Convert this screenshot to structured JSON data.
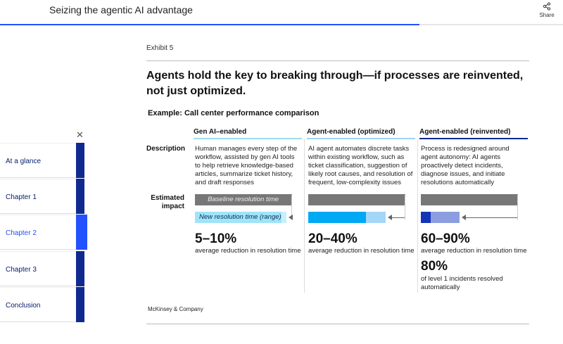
{
  "header": {
    "title": "Seizing the agentic AI advantage",
    "share_label": "Share",
    "share_icon": "share-icon",
    "reading_progress_percent": 74.5
  },
  "sidebar": {
    "close_icon": "close-icon",
    "active": "Chapter 2",
    "items": [
      {
        "label": "At a glance"
      },
      {
        "label": "Chapter 1"
      },
      {
        "label": "Chapter 2"
      },
      {
        "label": "Chapter 3"
      },
      {
        "label": "Conclusion"
      }
    ]
  },
  "exhibit": {
    "label": "Exhibit 5",
    "title": "Agents hold the key to breaking through—if processes are reinvented, not just optimized.",
    "subtitle": "Example: Call center performance comparison",
    "row_labels": {
      "description": "Description",
      "impact": "Estimated impact"
    },
    "bar_labels": {
      "baseline": "Baseline resolution time",
      "new": "New resolution time (range)"
    },
    "columns": [
      {
        "title": "Gen AI–enabled",
        "accent": "#9fdcf2",
        "description": "Human manages every step of the workflow, assisted by gen AI tools to help retrieve knowledge-based articles, summarize ticket history, and draft responses",
        "reduction_range_percent": [
          5,
          10
        ],
        "bar_colors": [
          "#9fe4f7",
          "#c8f0fb"
        ],
        "stat": "5–10%",
        "stat_label": "average reduction in resolution time"
      },
      {
        "title": "Agent-enabled (optimized)",
        "accent": "#9fd3f5",
        "description": "AI agent automates discrete tasks within existing workflow, such as ticket classification, suggestion of likely root causes, and resolution of frequent, low-complexity issues",
        "reduction_range_percent": [
          20,
          40
        ],
        "bar_colors": [
          "#00a9f4",
          "#a4d7f7"
        ],
        "stat": "20–40%",
        "stat_label": "average reduction in resolution time"
      },
      {
        "title": "Agent-enabled (reinvented)",
        "accent": "#0f2a8f",
        "description": "Process is redesigned around agent autonomy: AI agents proactively detect incidents, diagnose issues, and initiate resolutions automatically",
        "reduction_range_percent": [
          60,
          90
        ],
        "bar_colors": [
          "#1434b8",
          "#8c9ee0"
        ],
        "stat": "60–90%",
        "stat_label": "average reduction in resolution time",
        "stat2": "80%",
        "stat2_label": "of level 1 incidents resolved automatically"
      }
    ],
    "source": "McKinsey & Company"
  }
}
